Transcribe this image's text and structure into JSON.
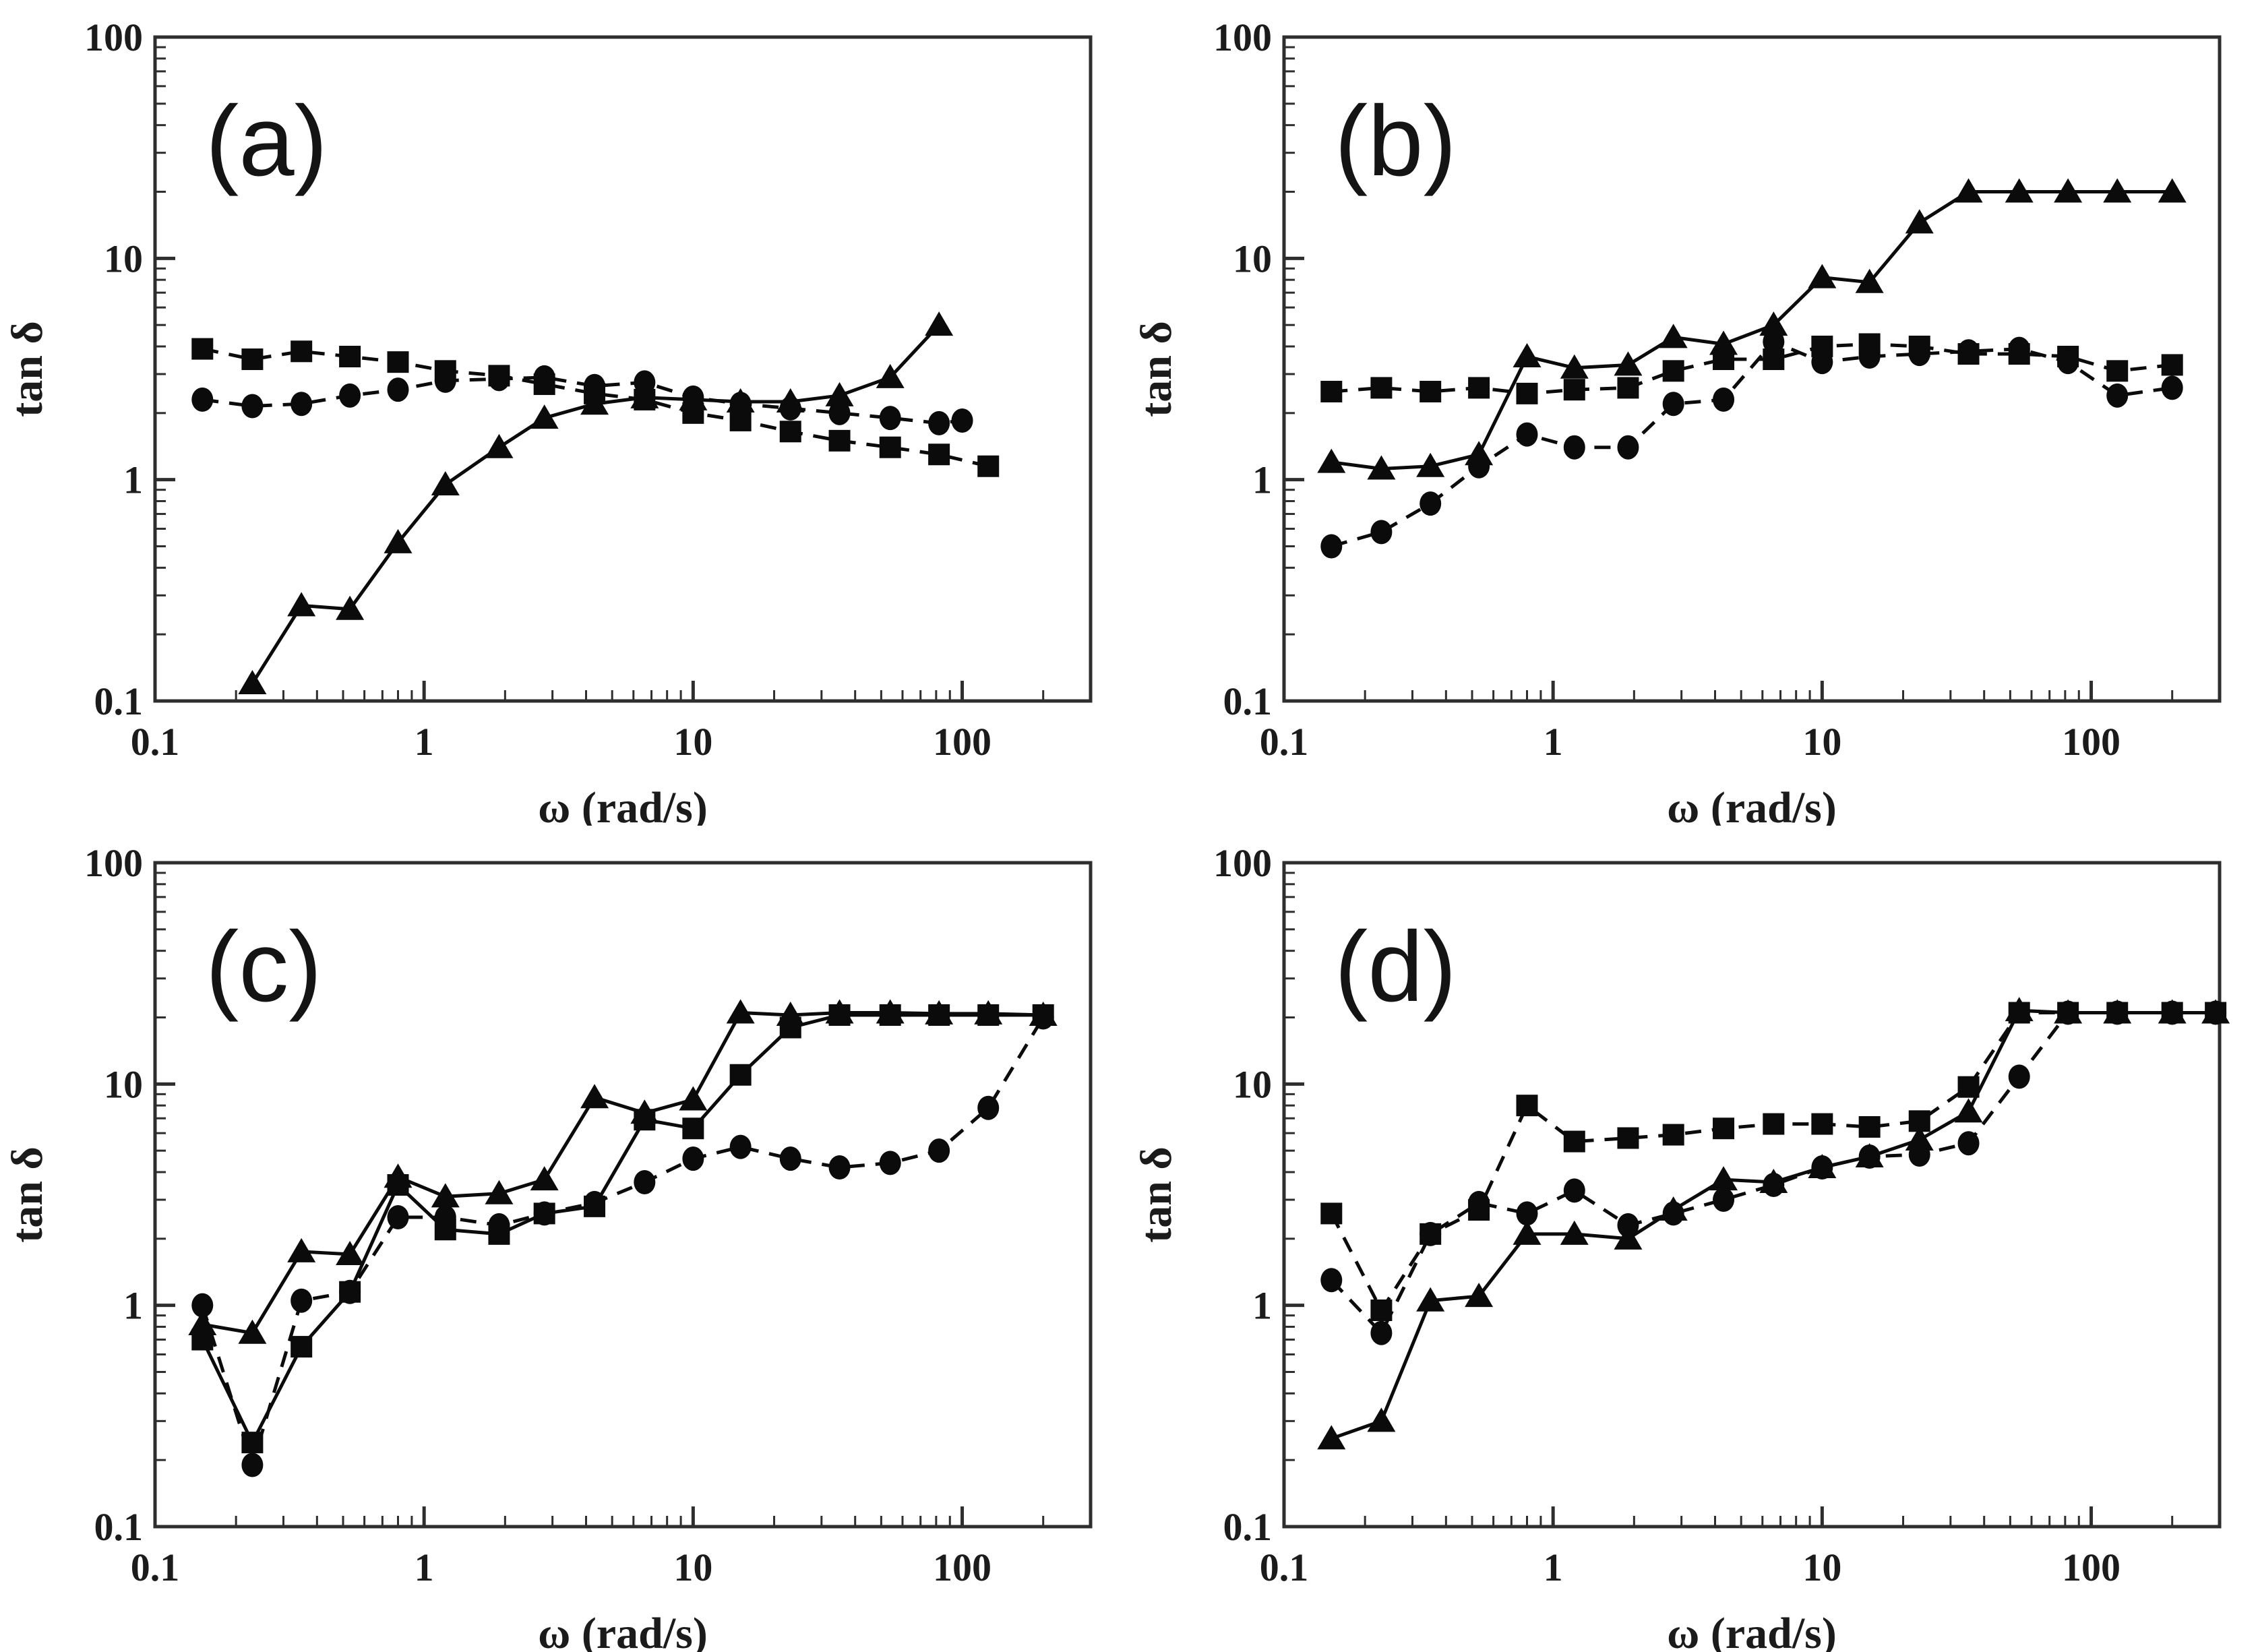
{
  "figure": {
    "background": "#ffffff",
    "ink": "#0b0b0b",
    "frame_color": "#2e2e2e",
    "marker_names": [
      "square-marker",
      "circle-marker",
      "triangle-marker"
    ]
  },
  "chart_data": [
    {
      "type": "line",
      "panel_label": "(a)",
      "xlabel": "ω (rad/s)",
      "ylabel": "tan δ",
      "xscale": "log",
      "yscale": "log",
      "xlim": [
        0.1,
        300
      ],
      "ylim": [
        0.1,
        100
      ],
      "xticks": [
        0.1,
        1,
        10,
        100
      ],
      "yticks": [
        0.1,
        1,
        10,
        100
      ],
      "grid": false,
      "legend": null,
      "series": [
        {
          "name": "squares",
          "marker": "square",
          "line": "dashed",
          "x": [
            0.15,
            0.23,
            0.35,
            0.53,
            0.8,
            1.2,
            1.9,
            2.8,
            4.3,
            6.6,
            10,
            15,
            23,
            35,
            54,
            82,
            125
          ],
          "y": [
            3.9,
            3.5,
            3.8,
            3.6,
            3.4,
            3.1,
            2.95,
            2.7,
            2.45,
            2.3,
            2.0,
            1.85,
            1.65,
            1.5,
            1.4,
            1.3,
            1.15
          ]
        },
        {
          "name": "circles",
          "marker": "circle",
          "line": "dashed",
          "x": [
            0.15,
            0.23,
            0.35,
            0.53,
            0.8,
            1.2,
            1.9,
            2.8,
            4.3,
            6.6,
            10,
            15,
            23,
            35,
            54,
            82,
            100
          ],
          "y": [
            2.3,
            2.15,
            2.2,
            2.4,
            2.55,
            2.8,
            2.85,
            2.9,
            2.65,
            2.75,
            2.35,
            2.2,
            2.1,
            2.0,
            1.9,
            1.8,
            1.85
          ]
        },
        {
          "name": "triangles",
          "marker": "triangle",
          "line": "solid",
          "x": [
            0.23,
            0.35,
            0.53,
            0.8,
            1.2,
            1.9,
            2.8,
            4.3,
            6.6,
            10,
            15,
            23,
            35,
            54,
            82
          ],
          "y": [
            0.12,
            0.27,
            0.26,
            0.52,
            0.95,
            1.4,
            1.9,
            2.2,
            2.35,
            2.3,
            2.25,
            2.25,
            2.4,
            2.9,
            5.0
          ]
        }
      ]
    },
    {
      "type": "line",
      "panel_label": "(b)",
      "xlabel": "ω (rad/s)",
      "ylabel": "tan δ",
      "xscale": "log",
      "yscale": "log",
      "xlim": [
        0.1,
        300
      ],
      "ylim": [
        0.1,
        100
      ],
      "xticks": [
        0.1,
        1,
        10,
        100
      ],
      "yticks": [
        0.1,
        1,
        10,
        100
      ],
      "grid": false,
      "legend": null,
      "series": [
        {
          "name": "squares",
          "marker": "square",
          "line": "dashed",
          "x": [
            0.15,
            0.23,
            0.35,
            0.53,
            0.8,
            1.2,
            1.9,
            2.8,
            4.3,
            6.6,
            10,
            15,
            23,
            35,
            54,
            82,
            125,
            200
          ],
          "y": [
            2.5,
            2.6,
            2.5,
            2.6,
            2.45,
            2.55,
            2.6,
            3.1,
            3.5,
            3.5,
            4.0,
            4.1,
            4.0,
            3.7,
            3.7,
            3.6,
            3.1,
            3.3
          ]
        },
        {
          "name": "circles",
          "marker": "circle",
          "line": "dashed",
          "x": [
            0.15,
            0.23,
            0.35,
            0.53,
            0.8,
            1.2,
            1.9,
            2.8,
            4.3,
            6.6,
            10,
            15,
            23,
            35,
            54,
            82,
            125,
            200
          ],
          "y": [
            0.5,
            0.58,
            0.78,
            1.15,
            1.6,
            1.4,
            1.4,
            2.2,
            2.3,
            4.2,
            3.4,
            3.6,
            3.7,
            3.8,
            3.9,
            3.4,
            2.4,
            2.6
          ]
        },
        {
          "name": "triangles",
          "marker": "triangle",
          "line": "solid",
          "x": [
            0.15,
            0.23,
            0.35,
            0.53,
            0.8,
            1.2,
            1.9,
            2.8,
            4.3,
            6.6,
            10,
            15,
            23,
            35,
            54,
            82,
            125,
            200
          ],
          "y": [
            1.2,
            1.12,
            1.15,
            1.3,
            3.6,
            3.2,
            3.3,
            4.4,
            4.1,
            5.0,
            8.2,
            7.8,
            14.5,
            20,
            20,
            20,
            20,
            20
          ]
        }
      ]
    },
    {
      "type": "line",
      "panel_label": "(c)",
      "xlabel": "ω (rad/s)",
      "ylabel": "tan δ",
      "xscale": "log",
      "yscale": "log",
      "xlim": [
        0.1,
        300
      ],
      "ylim": [
        0.1,
        100
      ],
      "xticks": [
        0.1,
        1,
        10,
        100
      ],
      "yticks": [
        0.1,
        1,
        10,
        100
      ],
      "grid": false,
      "legend": null,
      "series": [
        {
          "name": "squares",
          "marker": "square",
          "line": "solid",
          "x": [
            0.15,
            0.23,
            0.35,
            0.53,
            0.8,
            1.2,
            1.9,
            2.8,
            4.3,
            6.6,
            10,
            15,
            23,
            35,
            54,
            82,
            125,
            200
          ],
          "y": [
            0.7,
            0.24,
            0.65,
            1.15,
            3.5,
            2.2,
            2.1,
            2.6,
            2.8,
            6.9,
            6.3,
            11,
            18,
            20.5,
            20.5,
            20.5,
            20.5,
            20.5
          ]
        },
        {
          "name": "circles",
          "marker": "circle",
          "line": "dashed",
          "x": [
            0.15,
            0.23,
            0.35,
            0.53,
            0.8,
            1.2,
            1.9,
            2.8,
            4.3,
            6.6,
            10,
            15,
            23,
            35,
            54,
            82,
            125,
            200
          ],
          "y": [
            1.0,
            0.19,
            1.05,
            1.15,
            2.5,
            2.5,
            2.3,
            2.6,
            2.9,
            3.6,
            4.6,
            5.2,
            4.6,
            4.2,
            4.4,
            5.0,
            7.8,
            20
          ]
        },
        {
          "name": "triangles",
          "marker": "triangle",
          "line": "solid",
          "x": [
            0.15,
            0.23,
            0.35,
            0.53,
            0.8,
            1.2,
            1.9,
            2.8,
            4.3,
            6.6,
            10,
            15,
            23,
            35,
            54,
            82,
            125,
            200
          ],
          "y": [
            0.82,
            0.75,
            1.75,
            1.7,
            3.8,
            3.1,
            3.2,
            3.7,
            8.7,
            7.4,
            8.5,
            21,
            20.5,
            21,
            21,
            20.8,
            20.8,
            20.5
          ]
        }
      ]
    },
    {
      "type": "line",
      "panel_label": "(d)",
      "xlabel": "ω (rad/s)",
      "ylabel": "tan δ",
      "xscale": "log",
      "yscale": "log",
      "xlim": [
        0.1,
        300
      ],
      "ylim": [
        0.1,
        100
      ],
      "xticks": [
        0.1,
        1,
        10,
        100
      ],
      "yticks": [
        0.1,
        1,
        10,
        100
      ],
      "grid": false,
      "legend": null,
      "series": [
        {
          "name": "squares",
          "marker": "square",
          "line": "dashed",
          "x": [
            0.15,
            0.23,
            0.35,
            0.53,
            0.8,
            1.2,
            1.9,
            2.8,
            4.3,
            6.6,
            10,
            15,
            23,
            35,
            54,
            82,
            125,
            200,
            290
          ],
          "y": [
            2.6,
            0.95,
            2.1,
            2.7,
            8.0,
            5.5,
            5.7,
            5.9,
            6.3,
            6.6,
            6.6,
            6.4,
            6.8,
            9.7,
            21,
            21,
            21,
            21,
            21
          ]
        },
        {
          "name": "circles",
          "marker": "circle",
          "line": "dashed",
          "x": [
            0.15,
            0.23,
            0.35,
            0.53,
            0.8,
            1.2,
            1.9,
            2.8,
            4.3,
            6.6,
            10,
            15,
            23,
            35,
            54,
            82,
            125,
            200,
            290
          ],
          "y": [
            1.3,
            0.75,
            2.1,
            2.9,
            2.6,
            3.3,
            2.3,
            2.6,
            3.0,
            3.5,
            4.2,
            4.7,
            4.8,
            5.4,
            10.8,
            21,
            21,
            21,
            21
          ]
        },
        {
          "name": "triangles",
          "marker": "triangle",
          "line": "solid",
          "x": [
            0.15,
            0.23,
            0.35,
            0.53,
            0.8,
            1.2,
            1.9,
            2.8,
            4.3,
            6.6,
            10,
            15,
            23,
            35,
            54,
            82,
            125,
            200,
            290
          ],
          "y": [
            0.25,
            0.3,
            1.05,
            1.1,
            2.1,
            2.1,
            2.0,
            2.7,
            3.7,
            3.6,
            4.2,
            4.7,
            5.6,
            7.5,
            21.5,
            21,
            21,
            21,
            21
          ]
        }
      ]
    }
  ]
}
